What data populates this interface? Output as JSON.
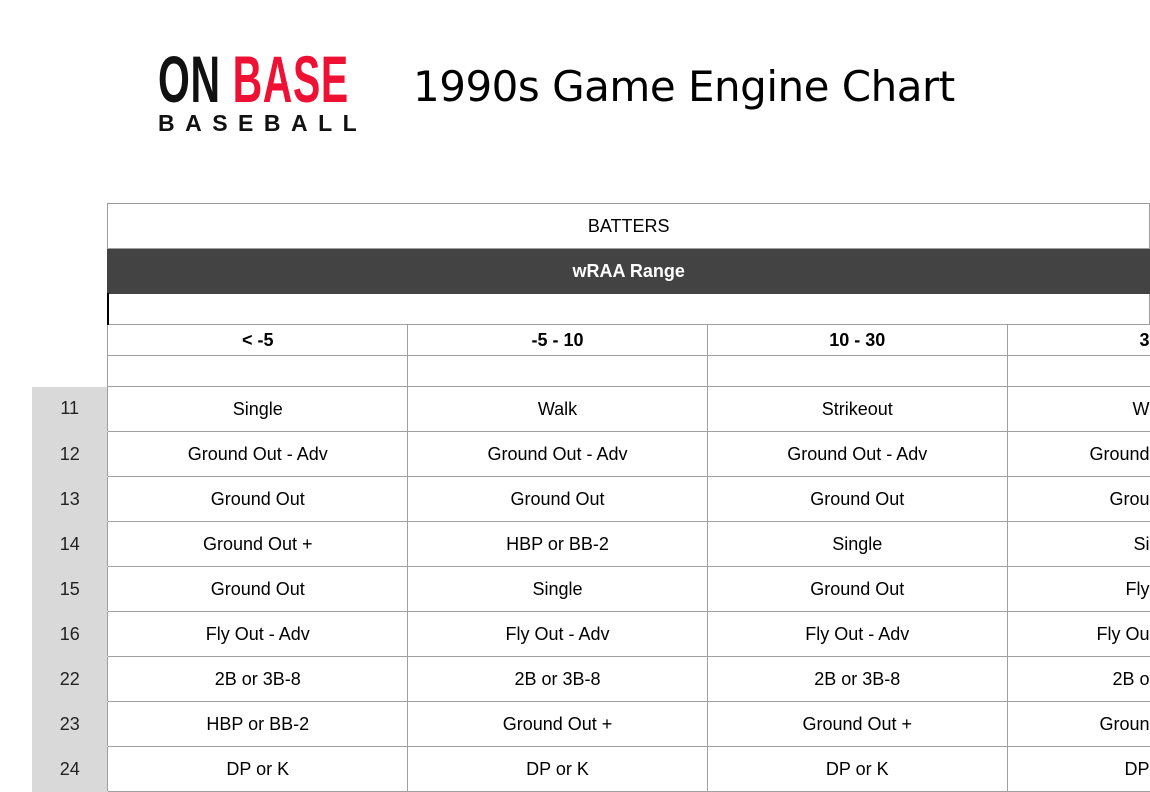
{
  "header": {
    "logo": {
      "word1": "ON",
      "word2": "BASE",
      "tagline": "BASEBALL"
    },
    "title": "1990s Game Engine Chart"
  },
  "table": {
    "group_header": "BATTERS",
    "subheader": "wRAA Range",
    "columns": [
      "< -5",
      "-5 - 10",
      "10 - 30",
      "3"
    ],
    "rows": [
      {
        "label": "11",
        "cells": [
          "Single",
          "Walk",
          "Strikeout",
          "W"
        ]
      },
      {
        "label": "12",
        "cells": [
          "Ground Out - Adv",
          "Ground Out - Adv",
          "Ground Out - Adv",
          "Ground"
        ]
      },
      {
        "label": "13",
        "cells": [
          "Ground Out",
          "Ground Out",
          "Ground Out",
          "Grou"
        ]
      },
      {
        "label": "14",
        "cells": [
          "Ground Out +",
          "HBP or BB-2",
          "Single",
          "Si"
        ]
      },
      {
        "label": "15",
        "cells": [
          "Ground Out",
          "Single",
          "Ground Out",
          "Fly"
        ]
      },
      {
        "label": "16",
        "cells": [
          "Fly Out - Adv",
          "Fly Out - Adv",
          "Fly Out - Adv",
          "Fly Ou"
        ]
      },
      {
        "label": "22",
        "cells": [
          "2B or 3B-8",
          "2B or 3B-8",
          "2B or 3B-8",
          "2B o"
        ]
      },
      {
        "label": "23",
        "cells": [
          "HBP or BB-2",
          "Ground Out +",
          "Ground Out +",
          "Groun"
        ]
      },
      {
        "label": "24",
        "cells": [
          "DP or K",
          "DP or K",
          "DP or K",
          "DP"
        ]
      }
    ]
  }
}
